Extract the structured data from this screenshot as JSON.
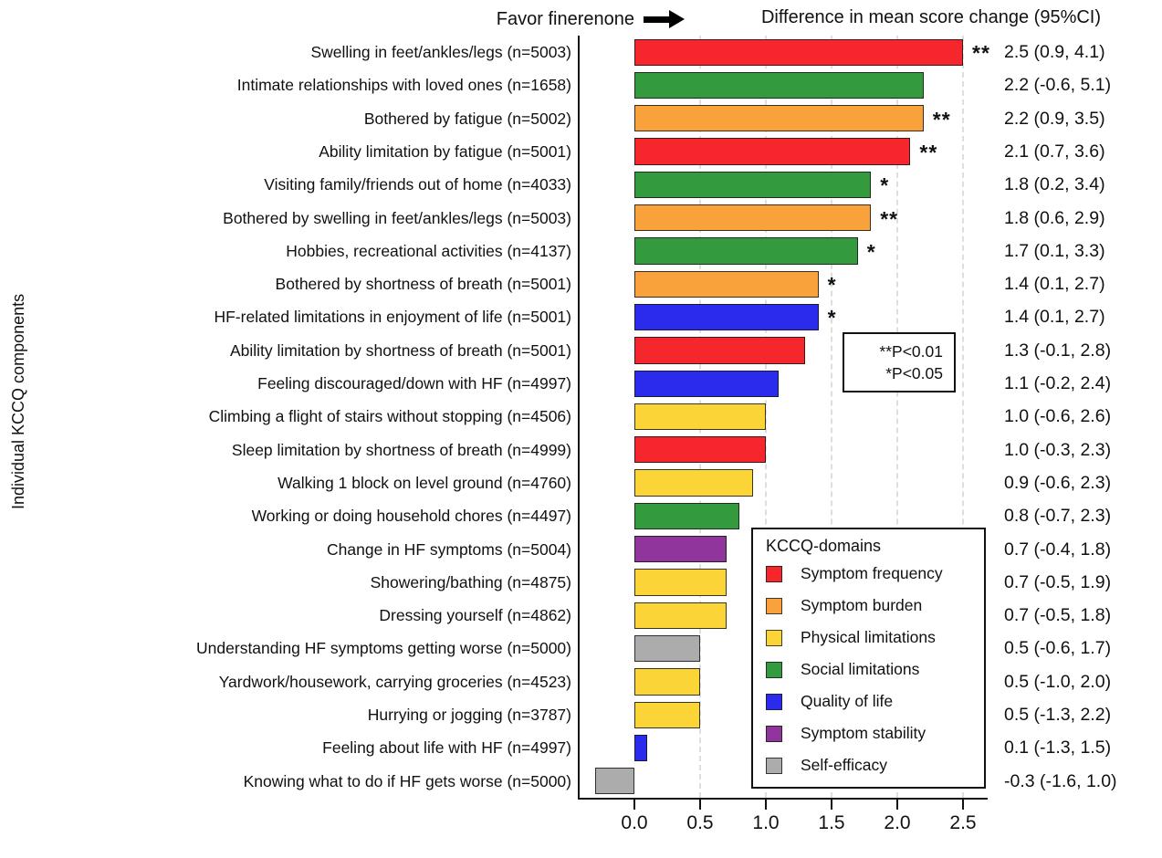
{
  "header": {
    "favor_label": "Favor finerenone",
    "title": "Difference in mean score change (95%CI)"
  },
  "ylabel": "Individual KCCQ components",
  "significance_box": {
    "lines": [
      "**P<0.01",
      "*P<0.05"
    ]
  },
  "legend": {
    "title": "KCCQ-domains",
    "position": "inside bottom right",
    "entries": [
      {
        "domain": "Symptom frequency",
        "color": "#f5262c"
      },
      {
        "domain": "Symptom burden",
        "color": "#f9a13b"
      },
      {
        "domain": "Physical limitations",
        "color": "#fbd437"
      },
      {
        "domain": "Social limitations",
        "color": "#339b3d"
      },
      {
        "domain": "Quality of life",
        "color": "#2b2bee"
      },
      {
        "domain": "Symptom stability",
        "color": "#90359b"
      },
      {
        "domain": "Self-efficacy",
        "color": "#acacac"
      }
    ]
  },
  "chart_data": {
    "type": "bar",
    "orientation": "horizontal",
    "title": "Difference in mean score change (95%CI)",
    "xlabel": "",
    "ylabel": "Individual KCCQ components",
    "xlim": [
      -0.45,
      2.67
    ],
    "x_ticks": [
      0.0,
      0.5,
      1.0,
      1.5,
      2.0,
      2.5
    ],
    "grid": "vertical dashed at 0.5 intervals",
    "rows": [
      {
        "label": "Swelling in feet/ankles/legs (n=5003)",
        "value": 2.5,
        "ci": [
          0.9,
          4.1
        ],
        "stars": "**",
        "domain": "Symptom frequency"
      },
      {
        "label": "Intimate relationships with loved ones (n=1658)",
        "value": 2.2,
        "ci": [
          -0.6,
          5.1
        ],
        "stars": "",
        "domain": "Social limitations"
      },
      {
        "label": "Bothered by fatigue (n=5002)",
        "value": 2.2,
        "ci": [
          0.9,
          3.5
        ],
        "stars": "**",
        "domain": "Symptom burden"
      },
      {
        "label": "Ability limitation by fatigue (n=5001)",
        "value": 2.1,
        "ci": [
          0.7,
          3.6
        ],
        "stars": "**",
        "domain": "Symptom frequency"
      },
      {
        "label": "Visiting family/friends out of home (n=4033)",
        "value": 1.8,
        "ci": [
          0.2,
          3.4
        ],
        "stars": "*",
        "domain": "Social limitations"
      },
      {
        "label": "Bothered by swelling in feet/ankles/legs (n=5003)",
        "value": 1.8,
        "ci": [
          0.6,
          2.9
        ],
        "stars": "**",
        "domain": "Symptom burden"
      },
      {
        "label": "Hobbies, recreational activities (n=4137)",
        "value": 1.7,
        "ci": [
          0.1,
          3.3
        ],
        "stars": "*",
        "domain": "Social limitations"
      },
      {
        "label": "Bothered by shortness of breath (n=5001)",
        "value": 1.4,
        "ci": [
          0.1,
          2.7
        ],
        "stars": "*",
        "domain": "Symptom burden"
      },
      {
        "label": "HF-related limitations in enjoyment of life (n=5001)",
        "value": 1.4,
        "ci": [
          0.1,
          2.7
        ],
        "stars": "*",
        "domain": "Quality of life"
      },
      {
        "label": "Ability limitation by shortness of breath (n=5001)",
        "value": 1.3,
        "ci": [
          -0.1,
          2.8
        ],
        "stars": "",
        "domain": "Symptom frequency"
      },
      {
        "label": "Feeling discouraged/down with HF (n=4997)",
        "value": 1.1,
        "ci": [
          -0.2,
          2.4
        ],
        "stars": "",
        "domain": "Quality of life"
      },
      {
        "label": "Climbing a flight of stairs without stopping (n=4506)",
        "value": 1.0,
        "ci": [
          -0.6,
          2.6
        ],
        "stars": "",
        "domain": "Physical limitations"
      },
      {
        "label": "Sleep limitation by shortness of breath (n=4999)",
        "value": 1.0,
        "ci": [
          -0.3,
          2.3
        ],
        "stars": "",
        "domain": "Symptom frequency"
      },
      {
        "label": "Walking 1 block on level ground (n=4760)",
        "value": 0.9,
        "ci": [
          -0.6,
          2.3
        ],
        "stars": "",
        "domain": "Physical limitations"
      },
      {
        "label": "Working or doing household chores (n=4497)",
        "value": 0.8,
        "ci": [
          -0.7,
          2.3
        ],
        "stars": "",
        "domain": "Social limitations"
      },
      {
        "label": "Change in HF symptoms (n=5004)",
        "value": 0.7,
        "ci": [
          -0.4,
          1.8
        ],
        "stars": "",
        "domain": "Symptom stability"
      },
      {
        "label": "Showering/bathing (n=4875)",
        "value": 0.7,
        "ci": [
          -0.5,
          1.9
        ],
        "stars": "",
        "domain": "Physical limitations"
      },
      {
        "label": "Dressing yourself (n=4862)",
        "value": 0.7,
        "ci": [
          -0.5,
          1.8
        ],
        "stars": "",
        "domain": "Physical limitations"
      },
      {
        "label": "Understanding HF symptoms getting worse (n=5000)",
        "value": 0.5,
        "ci": [
          -0.6,
          1.7
        ],
        "stars": "",
        "domain": "Self-efficacy"
      },
      {
        "label": "Yardwork/housework, carrying groceries (n=4523)",
        "value": 0.5,
        "ci": [
          -1.0,
          2.0
        ],
        "stars": "",
        "domain": "Physical limitations"
      },
      {
        "label": "Hurrying or jogging (n=3787)",
        "value": 0.5,
        "ci": [
          -1.3,
          2.2
        ],
        "stars": "",
        "domain": "Physical limitations"
      },
      {
        "label": "Feeling about life with HF (n=4997)",
        "value": 0.1,
        "ci": [
          -1.3,
          1.5
        ],
        "stars": "",
        "domain": "Quality of life"
      },
      {
        "label": "Knowing what to do if HF gets worse (n=5000)",
        "value": -0.3,
        "ci": [
          -1.6,
          1.0
        ],
        "stars": "",
        "domain": "Self-efficacy"
      }
    ]
  }
}
